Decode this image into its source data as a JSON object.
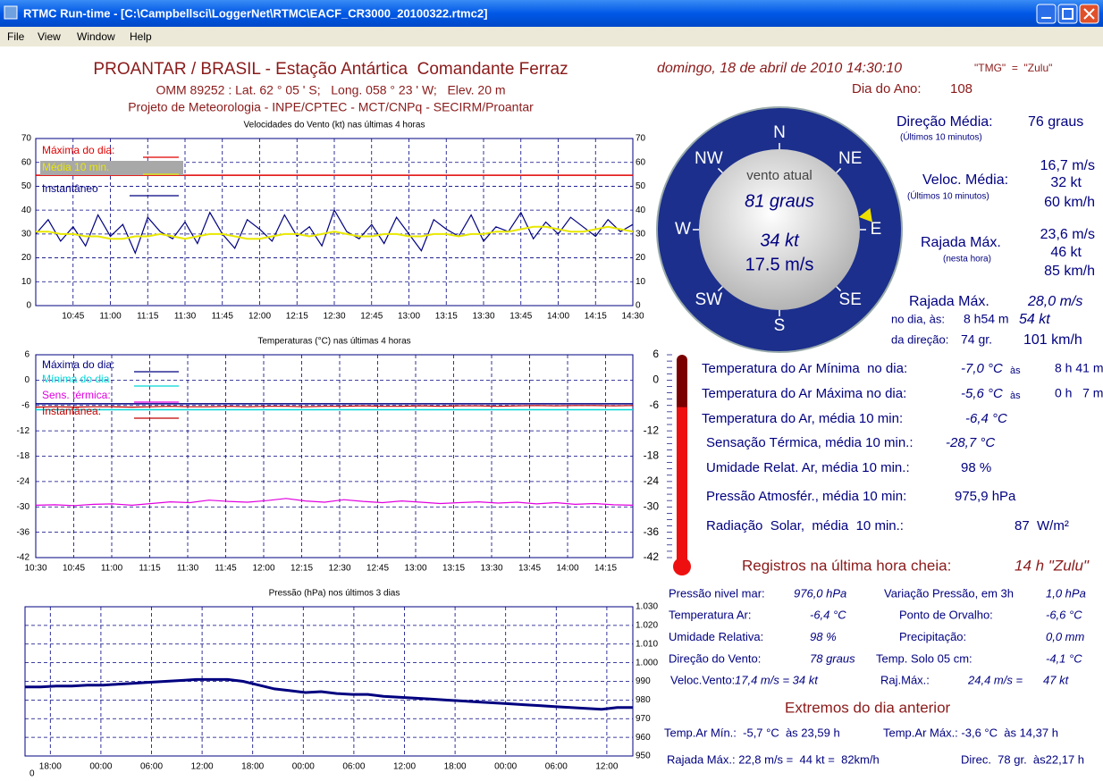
{
  "window": {
    "title": "RTMC Run-time - [C:\\Campbellsci\\LoggerNet\\RTMC\\EACF_CR3000_20100322.rtmc2]",
    "menu": [
      "File",
      "View",
      "Window",
      "Help"
    ]
  },
  "header": {
    "title": "PROANTAR / BRASIL - Estação Antártica  Comandante Ferraz",
    "line2": "OMM 89252 : Lat. 62 ° 05 ' S;   Long. 058 ° 23 ' W;   Elev. 20 m",
    "line3": "Projeto de Meteorologia - INPE/CPTEC - MCT/CNPq - SECIRM/Proantar",
    "datetime": "domingo, 18 de abril de 2010 14:30:10",
    "timezone": "\"TMG\"  =  \"Zulu\"",
    "day_label": "Dia do Ano:",
    "day_value": "108"
  },
  "charts": [
    {
      "type": "line",
      "title": "Velocidades do Vento (kt) nas últimas 4 horas",
      "ylim": [
        0,
        70
      ],
      "yticks": [
        0,
        10,
        20,
        30,
        40,
        50,
        60,
        70
      ],
      "grid": true,
      "xlabels": [
        "10:45",
        "11:00",
        "11:15",
        "11:30",
        "11:45",
        "12:00",
        "12:15",
        "12:30",
        "12:45",
        "13:00",
        "13:15",
        "13:30",
        "13:45",
        "14:00",
        "14:15",
        "14:30"
      ],
      "series": [
        {
          "name": "Máxima do dia:",
          "color": "#e00000",
          "values": [
            54.6
          ]
        },
        {
          "name": "Média 10 min.",
          "color": "#e8e800",
          "values": [
            31,
            31,
            30,
            30,
            29,
            29,
            28,
            28,
            29,
            29,
            30,
            29,
            28,
            29,
            30,
            30,
            29,
            28,
            28,
            29,
            30,
            30,
            29,
            30,
            31,
            30,
            29,
            29,
            30,
            30,
            29,
            29,
            30,
            30,
            29,
            30,
            30,
            31,
            31,
            32,
            33,
            33,
            32,
            31,
            31,
            32,
            33,
            32,
            31
          ]
        },
        {
          "name": "Instantâneo",
          "color": "#000080",
          "values": [
            30,
            36,
            27,
            33,
            25,
            38,
            29,
            34,
            22,
            37,
            31,
            28,
            35,
            26,
            39,
            30,
            24,
            36,
            32,
            27,
            38,
            29,
            33,
            25,
            40,
            31,
            28,
            34,
            26,
            37,
            30,
            23,
            36,
            32,
            29,
            38,
            27,
            33,
            31,
            39,
            28,
            35,
            30,
            37,
            33,
            29,
            36,
            31,
            34
          ]
        }
      ]
    },
    {
      "type": "line",
      "title": "Temperaturas (°C) nas últimas 4 horas",
      "ylim": [
        -42,
        6
      ],
      "yticks": [
        -42,
        -36,
        -30,
        -24,
        -18,
        -12,
        -6,
        0,
        6
      ],
      "grid": true,
      "xlabels": [
        "10:30",
        "10:45",
        "11:00",
        "11:15",
        "11:30",
        "11:45",
        "12:00",
        "12:15",
        "12:30",
        "12:45",
        "13:00",
        "13:15",
        "13:30",
        "13:45",
        "14:00",
        "14:15"
      ],
      "series": [
        {
          "name": "Máxima do dia:",
          "color": "#000080",
          "values": [
            -5.6
          ]
        },
        {
          "name": "Mínima do dia",
          "color": "#00d8d8",
          "values": [
            -7.0
          ]
        },
        {
          "name": "Sens. térmica:",
          "color": "#e000e0",
          "values": [
            -29.6,
            -29.5,
            -29.7,
            -29.4,
            -29.3,
            -29.6,
            -29.2,
            -28.8,
            -29.0,
            -28.4,
            -28.7,
            -28.9,
            -28.5,
            -28.0,
            -28.6,
            -28.9,
            -28.3,
            -28.7,
            -29.0,
            -28.6,
            -28.9,
            -29.2,
            -29.0,
            -28.8,
            -29.1,
            -28.9,
            -29.3,
            -29.0,
            -29.4,
            -29.2,
            -29.5,
            -29.6
          ]
        },
        {
          "name": "Instantânea:",
          "color": "#c00000",
          "values": [
            -6.4,
            -6.3,
            -6.4,
            -6.3,
            -6.3,
            -6.4,
            -6.3,
            -6.2,
            -6.3,
            -6.3,
            -6.2,
            -6.3,
            -6.2,
            -6.2,
            -6.3,
            -6.2,
            -6.2,
            -6.1,
            -6.2,
            -6.2,
            -6.1,
            -6.2,
            -6.1,
            -6.1,
            -6.2,
            -6.1,
            -6.0,
            -6.1,
            -6.0,
            -6.0,
            -6.1,
            -6.0
          ]
        }
      ]
    },
    {
      "type": "line",
      "title": "Pressão (hPa) nos últimos 3 dias",
      "ylim": [
        950,
        1030
      ],
      "yticks": [
        {
          "value": 1030,
          "label": "1.030"
        },
        {
          "value": 1020,
          "label": "1.020"
        },
        {
          "value": 1010,
          "label": "1.010"
        },
        {
          "value": 1000,
          "label": "1.000"
        },
        990,
        980,
        970,
        960,
        950
      ],
      "grid": true,
      "xlabels": [
        "18:00",
        "00:00",
        "06:00",
        "12:00",
        "18:00",
        "00:00",
        "06:00",
        "12:00",
        "18:00",
        "00:00",
        "06:00",
        "12:00"
      ],
      "corner_label": "0",
      "series": [
        {
          "color": "#000080",
          "values": [
            987,
            987,
            987.5,
            987.5,
            988,
            988,
            988.5,
            989,
            989.5,
            990,
            990.5,
            991,
            991,
            991,
            990,
            988,
            986,
            985,
            984,
            984.5,
            983.5,
            983,
            983,
            982,
            981.5,
            981,
            980.5,
            980,
            979.5,
            979,
            978.5,
            978,
            977.5,
            977,
            976.5,
            976,
            975.5,
            975,
            976,
            976
          ]
        }
      ]
    }
  ],
  "compass": {
    "points": [
      "N",
      "NE",
      "E",
      "SE",
      "S",
      "SW",
      "W",
      "NW"
    ],
    "caption": "vento atual",
    "direction": "81 graus",
    "speed_kt": "34 kt",
    "speed_ms": "17.5 m/s",
    "arrow_deg": 81
  },
  "thermometer": {
    "value": -6.4,
    "range": [
      -42,
      6
    ]
  },
  "wind_summary": {
    "direction": {
      "label": "Direção Média:",
      "note": "(Últimos 10 minutos)",
      "value": "76 graus"
    },
    "speed": {
      "label": "Veloc. Média:",
      "note": "(Últimos 10 minutos)",
      "values": [
        "16,7 m/s",
        "32 kt",
        "60 km/h"
      ]
    },
    "gust_hour": {
      "label": "Rajada Máx.",
      "note": "(nesta hora)",
      "values": [
        "23,6 m/s",
        "46 kt",
        "85 km/h"
      ]
    },
    "gust_day": {
      "label": "Rajada Máx.",
      "value_ms": "28,0 m/s",
      "time_label": "no dia, às:",
      "time": "8 h54 m",
      "value_kt": "54 kt",
      "dir_label": "da direção:",
      "direction": "74 gr.",
      "value_kmh": "101 km/h"
    }
  },
  "current": [
    {
      "label": "Temperatura do Ar Mínima  no dia:",
      "value": "-7,0 °C",
      "at": "às",
      "time": "8 h 41 m"
    },
    {
      "label": "Temperatura do Ar Máxima no dia:",
      "value": "-5,6 °C",
      "at": "às",
      "time": "0 h   7 m"
    },
    {
      "label": "Temperatura do Ar, média 10 min:",
      "value": "-6,4 °C"
    },
    {
      "label": "Sensação Térmica, média 10 min.:",
      "value": "-28,7 °C"
    },
    {
      "label": "Umidade Relat. Ar, média 10 min.:",
      "value": "98 %"
    },
    {
      "label": "Pressão Atmosfér., média 10 min:",
      "value": "975,9 hPa"
    },
    {
      "label": "Radiação  Solar,  média  10 min.:",
      "value": "87  W/m²"
    }
  ],
  "records": {
    "title": "Registros na última hora cheia:",
    "hour": "14 h \"Zulu\"",
    "rows": [
      [
        "Pressão nivel mar:",
        "976,0 hPa",
        "Variação Pressão, em 3h",
        "1,0 hPa"
      ],
      [
        "Temperatura Ar:",
        "-6,4 °C",
        "Ponto de Orvalho:",
        "-6,6 °C"
      ],
      [
        "Umidade Relativa:",
        "98 %",
        "Precipitação:",
        "0,0 mm"
      ],
      [
        "Direção do Vento:",
        "78 graus",
        "Temp. Solo 05 cm:",
        "-4,1 °C"
      ],
      [
        "Veloc.Vento:",
        "17,4 m/s = 34 kt",
        "Raj.Máx.:",
        "24,4 m/s =",
        "47 kt"
      ]
    ],
    "previous_title": "Extremos do dia anterior",
    "previous": [
      "Temp.Ar Mín.:  -5,7 °C  às 23,59 h",
      "Temp.Ar Máx.: -3,6 °C  às 14,37 h",
      "Rajada Máx.: 22,8 m/s =  44 kt =  82km/h",
      "Direc.  78 gr.  às22,17 h"
    ]
  }
}
